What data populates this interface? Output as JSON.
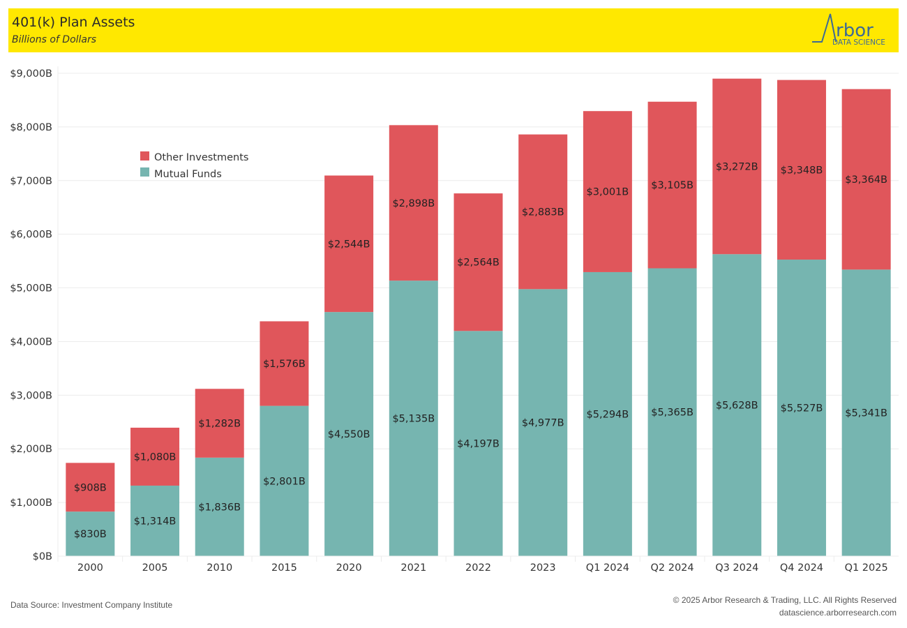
{
  "header": {
    "title": "401(k) Plan Assets",
    "subtitle": "Billions of Dollars",
    "logo_word": "rbor",
    "logo_tagline": "DATA SCIENCE",
    "background_color": "#ffe800"
  },
  "footer": {
    "source": "Data Source: Investment Company Institute",
    "copyright": "© 2025 Arbor Research & Trading, LLC. All Rights Reserved",
    "website": "datascience.arborresearch.com"
  },
  "chart_data": {
    "type": "bar",
    "stacked": true,
    "title": "401(k) Plan Assets",
    "subtitle": "Billions of Dollars",
    "xlabel": "",
    "ylabel": "",
    "ylim": [
      0,
      9000
    ],
    "yticks": [
      0,
      1000,
      2000,
      3000,
      4000,
      5000,
      6000,
      7000,
      8000,
      9000
    ],
    "ytick_labels": [
      "$0B",
      "$1,000B",
      "$2,000B",
      "$3,000B",
      "$4,000B",
      "$5,000B",
      "$6,000B",
      "$7,000B",
      "$8,000B",
      "$9,000B"
    ],
    "grid": true,
    "legend_position": "top-left",
    "categories": [
      "2000",
      "2005",
      "2010",
      "2015",
      "2020",
      "2021",
      "2022",
      "2023",
      "Q1 2024",
      "Q2 2024",
      "Q3 2024",
      "Q4 2024",
      "Q1 2025"
    ],
    "series": [
      {
        "name": "Mutual Funds",
        "color": "#76b5b0",
        "values": [
          830,
          1314,
          1836,
          2801,
          4550,
          5135,
          4197,
          4977,
          5294,
          5365,
          5628,
          5527,
          5341
        ],
        "labels": [
          "$830B",
          "$1,314B",
          "$1,836B",
          "$2,801B",
          "$4,550B",
          "$5,135B",
          "$4,197B",
          "$4,977B",
          "$5,294B",
          "$5,365B",
          "$5,628B",
          "$5,527B",
          "$5,341B"
        ]
      },
      {
        "name": "Other Investments",
        "color": "#e0565b",
        "values": [
          908,
          1080,
          1282,
          1576,
          2544,
          2898,
          2564,
          2883,
          3001,
          3105,
          3272,
          3348,
          3364
        ],
        "labels": [
          "$908B",
          "$1,080B",
          "$1,282B",
          "$1,576B",
          "$2,544B",
          "$2,898B",
          "$2,564B",
          "$2,883B",
          "$3,001B",
          "$3,105B",
          "$3,272B",
          "$3,348B",
          "$3,364B"
        ]
      }
    ],
    "legend": [
      "Other Investments",
      "Mutual Funds"
    ]
  }
}
